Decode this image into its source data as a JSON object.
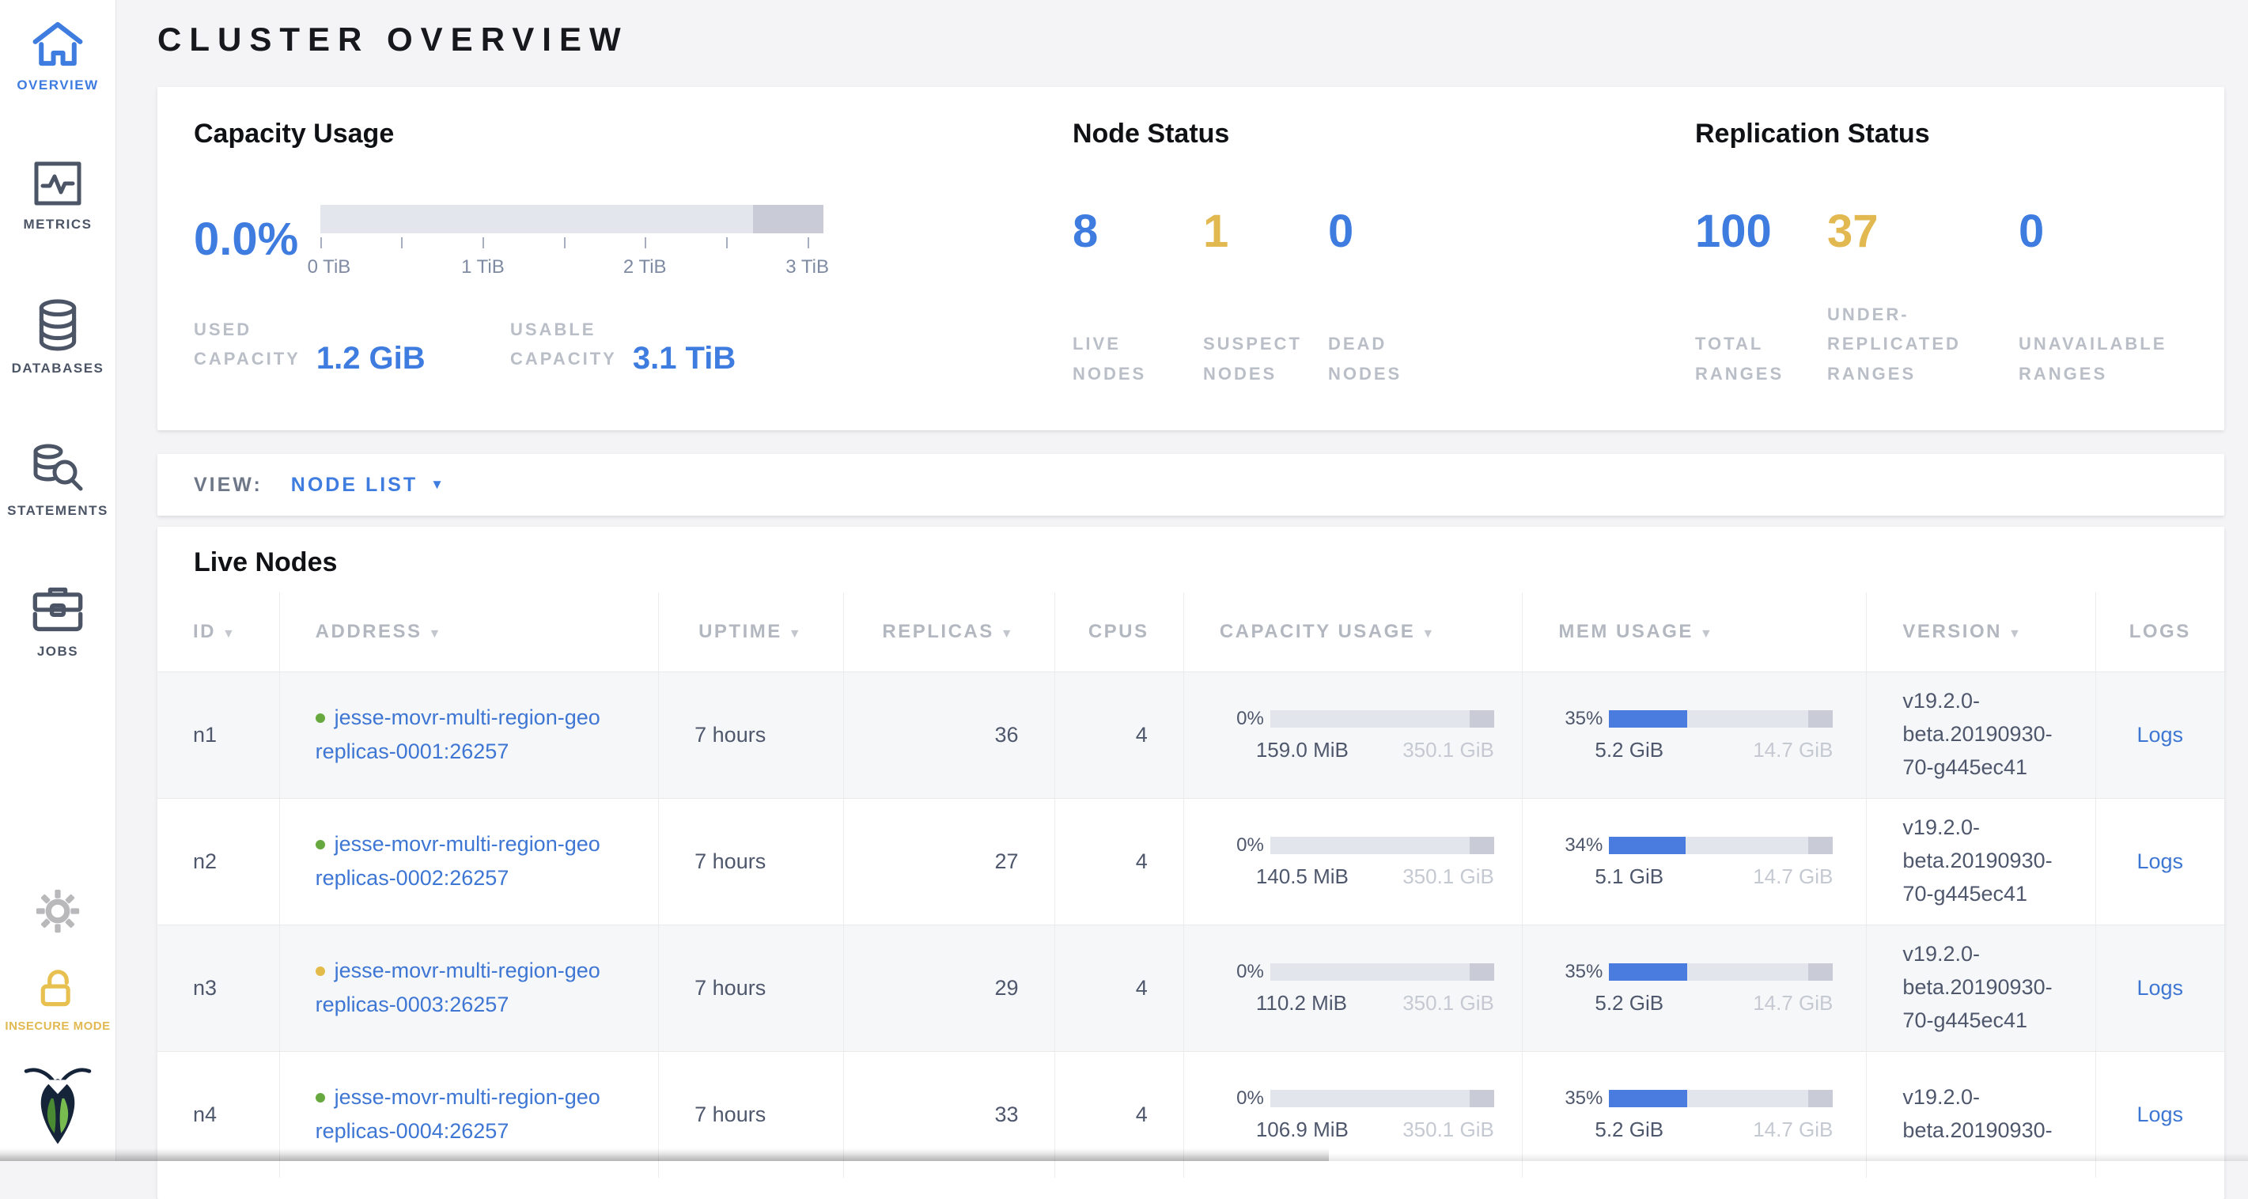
{
  "colors": {
    "accent-blue": "#3e7ce0",
    "warn-yellow": "#e2b950",
    "link-blue": "#3e76d4",
    "green-dot": "#68a93f",
    "yellow-dot": "#e3bb4a",
    "text-dark": "#4e576c",
    "label-gray": "#b9bec7",
    "bar-track": "#e3e6ed",
    "bar-tail": "#c9ccd7",
    "fill-blue": "#4a7ce0"
  },
  "ui": {
    "sort_arrow": "▼",
    "dropdown_arrow": "▼"
  },
  "sidebar": {
    "items": [
      {
        "label": "OVERVIEW",
        "active": true
      },
      {
        "label": "METRICS",
        "active": false
      },
      {
        "label": "DATABASES",
        "active": false
      },
      {
        "label": "STATEMENTS",
        "active": false
      },
      {
        "label": "JOBS",
        "active": false
      }
    ],
    "insecure_label": "INSECURE MODE"
  },
  "page_title": "CLUSTER OVERVIEW",
  "summary": {
    "capacity": {
      "title": "Capacity Usage",
      "percent": "0.0%",
      "axis_ticks": [
        "0 TiB",
        "1 TiB",
        "2 TiB",
        "3 TiB"
      ],
      "used_label_lines": [
        "USED",
        "CAPACITY"
      ],
      "used_value": "1.2 GiB",
      "usable_label_lines": [
        "USABLE",
        "CAPACITY"
      ],
      "usable_value": "3.1 TiB"
    },
    "node_status": {
      "title": "Node Status",
      "stats": [
        {
          "value": "8",
          "color": "blue",
          "label_lines": [
            "LIVE",
            "NODES"
          ]
        },
        {
          "value": "1",
          "color": "yellow",
          "label_lines": [
            "SUSPECT",
            "NODES"
          ]
        },
        {
          "value": "0",
          "color": "blue",
          "label_lines": [
            "DEAD",
            "NODES"
          ]
        }
      ]
    },
    "replication": {
      "title": "Replication Status",
      "stats": [
        {
          "value": "100",
          "color": "blue",
          "label_lines": [
            "TOTAL",
            "RANGES"
          ]
        },
        {
          "value": "37",
          "color": "yellow",
          "label_lines": [
            "UNDER-",
            "REPLICATED",
            "RANGES"
          ]
        },
        {
          "value": "0",
          "color": "blue",
          "label_lines": [
            "UNAVAILABLE",
            "RANGES"
          ]
        }
      ]
    }
  },
  "view_bar": {
    "label": "VIEW:",
    "value": "NODE LIST"
  },
  "nodes": {
    "title": "Live Nodes",
    "columns": [
      {
        "label": "ID"
      },
      {
        "label": "ADDRESS"
      },
      {
        "label": "UPTIME"
      },
      {
        "label": "REPLICAS"
      },
      {
        "label": "CPUS"
      },
      {
        "label": "CAPACITY USAGE"
      },
      {
        "label": "MEM USAGE"
      },
      {
        "label": "VERSION"
      },
      {
        "label": "LOGS"
      }
    ],
    "rows": [
      {
        "id": "n1",
        "status": "healthy",
        "address_line1": "jesse-movr-multi-region-geo",
        "address_line2": "replicas-0001:26257",
        "uptime": "7 hours",
        "replicas": "36",
        "cpus": "4",
        "cap_pct": "0%",
        "cap_fill": 0,
        "cap_used": "159.0 MiB",
        "cap_total": "350.1 GiB",
        "mem_pct": "35%",
        "mem_fill": 35,
        "mem_used": "5.2 GiB",
        "mem_total": "14.7 GiB",
        "version_lines": [
          "v19.2.0-",
          "beta.20190930-",
          "70-g445ec41"
        ],
        "logs_label": "Logs"
      },
      {
        "id": "n2",
        "status": "healthy",
        "address_line1": "jesse-movr-multi-region-geo",
        "address_line2": "replicas-0002:26257",
        "uptime": "7 hours",
        "replicas": "27",
        "cpus": "4",
        "cap_pct": "0%",
        "cap_fill": 0,
        "cap_used": "140.5 MiB",
        "cap_total": "350.1 GiB",
        "mem_pct": "34%",
        "mem_fill": 34,
        "mem_used": "5.1 GiB",
        "mem_total": "14.7 GiB",
        "version_lines": [
          "v19.2.0-",
          "beta.20190930-",
          "70-g445ec41"
        ],
        "logs_label": "Logs"
      },
      {
        "id": "n3",
        "status": "suspect",
        "address_line1": "jesse-movr-multi-region-geo",
        "address_line2": "replicas-0003:26257",
        "uptime": "7 hours",
        "replicas": "29",
        "cpus": "4",
        "cap_pct": "0%",
        "cap_fill": 0,
        "cap_used": "110.2 MiB",
        "cap_total": "350.1 GiB",
        "mem_pct": "35%",
        "mem_fill": 35,
        "mem_used": "5.2 GiB",
        "mem_total": "14.7 GiB",
        "version_lines": [
          "v19.2.0-",
          "beta.20190930-",
          "70-g445ec41"
        ],
        "logs_label": "Logs"
      },
      {
        "id": "n4",
        "status": "healthy",
        "address_line1": "jesse-movr-multi-region-geo",
        "address_line2": "replicas-0004:26257",
        "uptime": "7 hours",
        "replicas": "33",
        "cpus": "4",
        "cap_pct": "0%",
        "cap_fill": 0,
        "cap_used": "106.9 MiB",
        "cap_total": "350.1 GiB",
        "mem_pct": "35%",
        "mem_fill": 35,
        "mem_used": "5.2 GiB",
        "mem_total": "14.7 GiB",
        "version_lines": [
          "v19.2.0-",
          "beta.20190930-"
        ],
        "logs_label": "Logs"
      }
    ]
  }
}
